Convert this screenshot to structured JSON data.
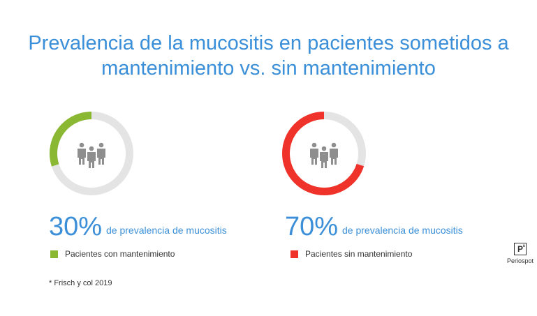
{
  "chart_data": {
    "type": "pie",
    "title": "Prevalencia de la mucositis en pacientes sometidos a mantenimiento vs. sin mantenimiento",
    "title_line1": "Prevalencia de la mucositis en pacientes sometidos a",
    "title_line2": "mantenimiento vs. sin mantenimiento",
    "track_color": "#e4e4e4",
    "series": [
      {
        "name": "Pacientes con mantenimiento",
        "value": 30,
        "label": "30%",
        "color": "#8ab832",
        "icon": "people-icon"
      },
      {
        "name": "Pacientes sin mantenimiento",
        "value": 70,
        "label": "70%",
        "color": "#f0332a",
        "icon": "people-icon"
      }
    ],
    "sublabel": "de prevalencia de mucositis"
  },
  "footnote": "* Frisch y col 2019",
  "logo": {
    "mark": "P",
    "name": "Periospot"
  }
}
